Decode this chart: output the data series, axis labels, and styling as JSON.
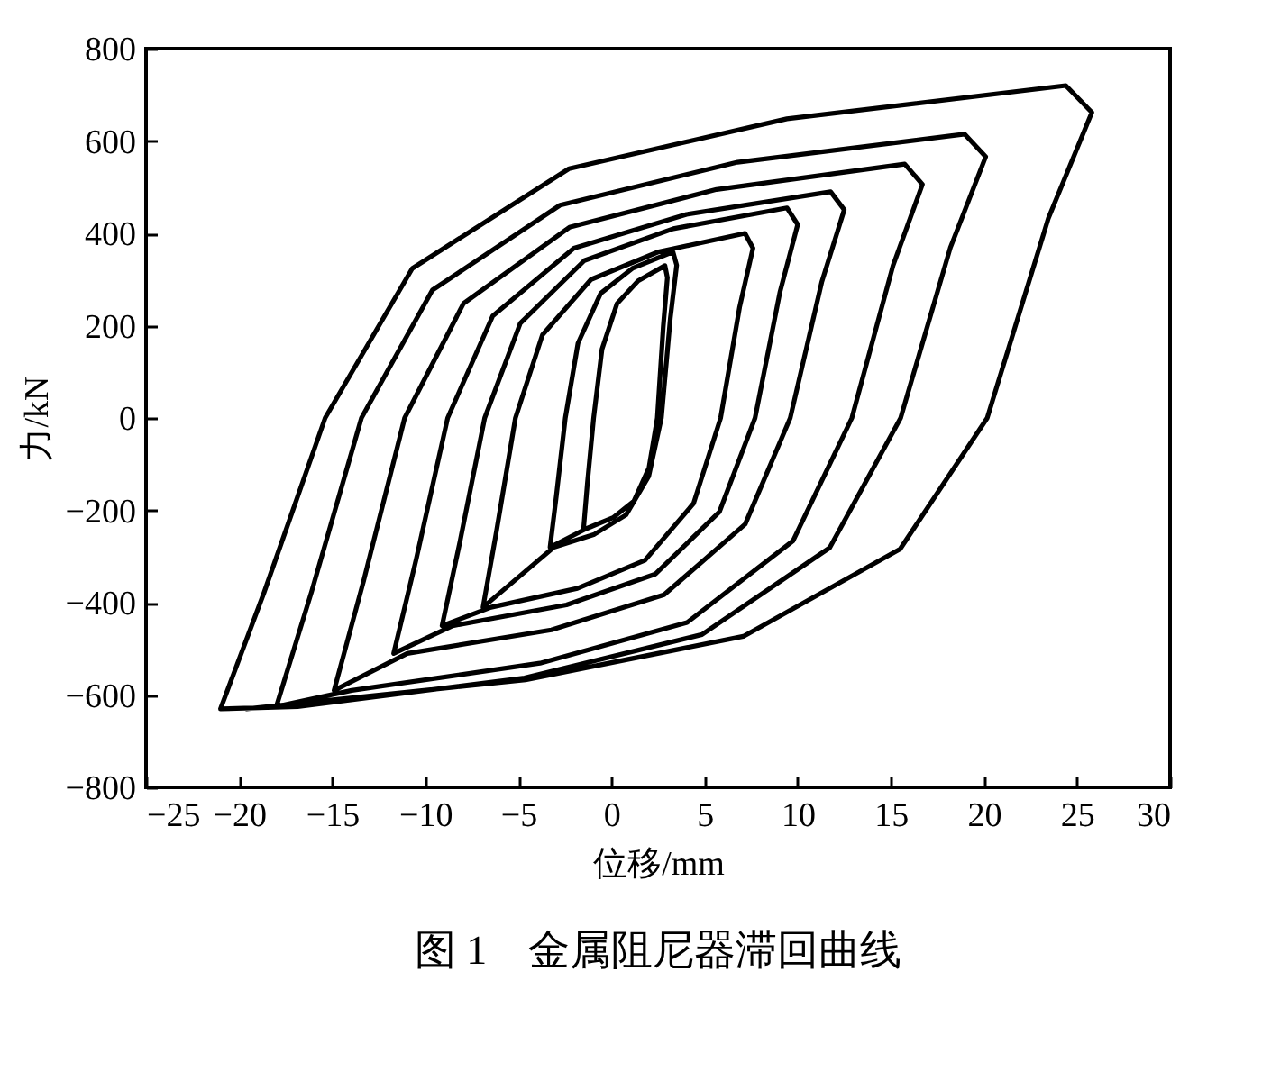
{
  "chart_data": {
    "type": "line",
    "title": "图 1　金属阻尼器滞回曲线",
    "xlabel": "位移/mm",
    "ylabel": "力/kN",
    "xlim": [
      -25,
      30
    ],
    "xticks": [
      -25,
      -20,
      -15,
      -10,
      -5,
      0,
      5,
      10,
      15,
      20,
      25,
      30
    ],
    "ylim": [
      -800,
      800
    ],
    "yticks": [
      -800,
      -600,
      -400,
      -200,
      0,
      200,
      400,
      600,
      800
    ],
    "grid": false,
    "legend": false,
    "marker": "none",
    "line_style": "solid",
    "series": [
      {
        "color": "#000000",
        "x": [
          -1.5,
          -1.3,
          -0.96,
          -0.51,
          0.3,
          1.43,
          2.87,
          3,
          2.78,
          2.46,
          2.01,
          1.2,
          0.08,
          -1.37,
          -3.3,
          -2.96,
          -2.48,
          -1.8,
          -0.58,
          1.12,
          3.3,
          3.5,
          3.16,
          2.68,
          2.0,
          0.78,
          -0.92,
          -3.1,
          -6.9,
          -6.18,
          -5.16,
          -3.71,
          -1.1,
          2.53,
          7.17,
          7.6,
          6.88,
          5.86,
          4.41,
          1.8,
          -1.83,
          -6.47,
          -9.1,
          -8.15,
          -6.81,
          -4.9,
          -1.46,
          3.32,
          9.43,
          10,
          9.05,
          7.71,
          5.8,
          2.36,
          -2.42,
          -8.53,
          -11.7,
          -10.49,
          -8.8,
          -6.38,
          -2.02,
          4.03,
          11.77,
          12.5,
          11.29,
          9.6,
          7.18,
          2.82,
          -3.23,
          -10.97,
          -14.9,
          -13.32,
          -11.11,
          -7.95,
          -2.26,
          5.64,
          15.75,
          16.7,
          15.12,
          12.91,
          9.75,
          4.06,
          -3.84,
          -13.95,
          -18,
          -16.1,
          -13.43,
          -9.62,
          -2.76,
          6.77,
          18.96,
          20.1,
          18.2,
          15.53,
          11.72,
          4.86,
          -4.67,
          -16.86,
          -21,
          -18.66,
          -15.38,
          -10.7,
          -2.28,
          9.42,
          24.4,
          25.8,
          23.46,
          20.18,
          15.5,
          7.08,
          -4.62,
          -19.6
        ],
        "values": [
          -240,
          -144,
          0,
          149,
          248,
          297,
          330,
          304,
          198,
          0,
          -108,
          -180,
          -216,
          -240,
          -280,
          -168,
          0,
          162,
          270,
          324,
          360,
          331,
          216,
          0,
          -126,
          -210,
          -252,
          -280,
          -410,
          -246,
          0,
          180,
          300,
          360,
          400,
          368,
          240,
          0,
          -185,
          -308,
          -369,
          -410,
          -450,
          -270,
          0,
          205,
          341,
          410,
          455,
          419,
          273,
          0,
          -203,
          -338,
          -405,
          -450,
          -510,
          -306,
          0,
          221,
          368,
          441,
          490,
          451,
          294,
          0,
          -230,
          -383,
          -459,
          -510,
          -590,
          -354,
          0,
          248,
          413,
          495,
          550,
          506,
          330,
          0,
          -266,
          -443,
          -531,
          -590,
          -625,
          -375,
          0,
          277,
          461,
          554,
          615,
          566,
          369,
          0,
          -281,
          -469,
          -563,
          -625,
          -630,
          -378,
          0,
          324,
          540,
          648,
          720,
          662,
          432,
          0,
          -284,
          -473,
          -567,
          -630
        ]
      }
    ]
  }
}
